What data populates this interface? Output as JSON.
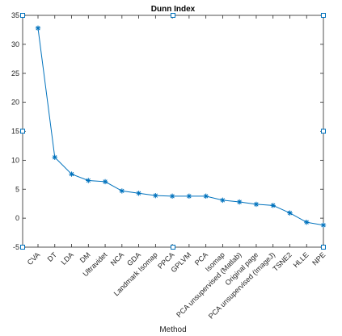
{
  "chart_data": {
    "type": "line",
    "title": "Dunn Index",
    "xlabel": "Method",
    "ylabel": "",
    "ylim": [
      -5,
      35
    ],
    "yticks": [
      -5,
      0,
      5,
      10,
      15,
      20,
      25,
      30,
      35
    ],
    "grid": false,
    "legend": "none",
    "marker": "asterisk",
    "line_color": "#0072BD",
    "categories": [
      "CVA",
      "DT",
      "LDA",
      "DM",
      "Ultravidet",
      "NCA",
      "GDA",
      "Landmark Isomap",
      "PPCA",
      "GPLVM",
      "PCA",
      "Isomap",
      "PCA unsupervised (Matlab)",
      "Original page",
      "PCA unsupervised (ImageJ)",
      "TSNE2",
      "HLLE",
      "NPE"
    ],
    "series": [
      {
        "values": [
          32.8,
          10.5,
          7.6,
          6.5,
          6.3,
          4.7,
          4.3,
          3.9,
          3.8,
          3.8,
          3.8,
          3.1,
          2.8,
          2.4,
          2.2,
          0.9,
          -0.7,
          -1.2
        ]
      }
    ],
    "data_tips": [
      {
        "x_index": 0,
        "y": -5
      },
      {
        "x_index": 0,
        "y": 15
      },
      {
        "x_index": 0,
        "y": 35
      },
      {
        "x_index": 8.5,
        "y": -5
      },
      {
        "x_index": 8.5,
        "y": 35
      },
      {
        "x_index": 17,
        "y": -5
      },
      {
        "x_index": 17,
        "y": 15
      },
      {
        "x_index": 17,
        "y": 35
      }
    ]
  }
}
